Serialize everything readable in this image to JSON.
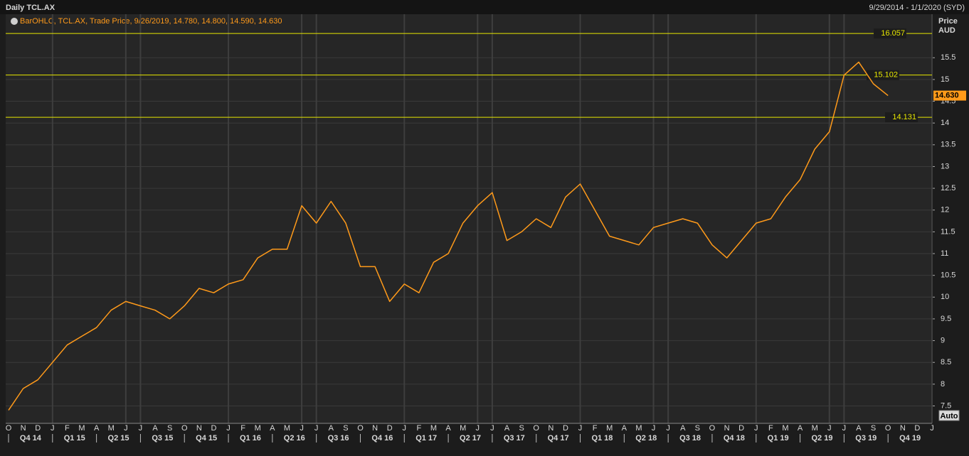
{
  "chart_data": {
    "type": "line",
    "title": "Daily TCL.AX",
    "subtitle": "9/29/2014 - 1/1/2020 (SYD)",
    "legend": "BarOHLC, TCL.AX, Trade Price, 9/26/2019, 14.780, 14.800, 14.590, 14.630",
    "y_axis_label": "Price",
    "y_unit": "AUD",
    "button": "Auto",
    "categories": [
      "O",
      "N",
      "D",
      "J",
      "F",
      "M",
      "A",
      "M",
      "J",
      "J",
      "A",
      "S",
      "O",
      "N",
      "D",
      "J",
      "F",
      "M",
      "A",
      "M",
      "J",
      "J",
      "A",
      "S",
      "O",
      "N",
      "D",
      "J",
      "F",
      "M",
      "A",
      "M",
      "J",
      "J",
      "A",
      "S",
      "O",
      "N",
      "D",
      "J",
      "F",
      "M",
      "A",
      "M",
      "J",
      "J",
      "A",
      "S",
      "O",
      "N",
      "D",
      "J",
      "F",
      "M",
      "A",
      "M",
      "J",
      "J",
      "A",
      "S",
      "O",
      "N",
      "D",
      "J"
    ],
    "quarters": [
      "Q4 14",
      "Q1 15",
      "Q2 15",
      "Q3 15",
      "Q4 15",
      "Q1 16",
      "Q2 16",
      "Q3 16",
      "Q4 16",
      "Q1 17",
      "Q2 17",
      "Q3 17",
      "Q4 17",
      "Q1 18",
      "Q2 18",
      "Q3 18",
      "Q4 18",
      "Q1 19",
      "Q2 19",
      "Q3 19",
      "Q4 19"
    ],
    "series": [
      {
        "color": "#ff9a1a",
        "values": [
          7.4,
          7.9,
          8.1,
          8.5,
          8.9,
          9.1,
          9.3,
          9.7,
          9.9,
          9.8,
          9.7,
          9.5,
          9.8,
          10.2,
          10.1,
          10.3,
          10.4,
          10.9,
          11.1,
          11.1,
          12.1,
          11.7,
          12.2,
          11.7,
          10.7,
          10.7,
          9.9,
          10.3,
          10.1,
          10.8,
          11.0,
          11.7,
          12.1,
          12.4,
          11.3,
          11.5,
          11.8,
          11.6,
          12.3,
          12.6,
          12.0,
          11.4,
          11.3,
          11.2,
          11.6,
          11.7,
          11.8,
          11.7,
          11.2,
          10.9,
          11.3,
          11.7,
          11.8,
          12.3,
          12.7,
          13.4,
          13.8,
          15.1,
          15.4,
          14.9,
          14.63,
          null,
          null,
          null
        ]
      }
    ],
    "last_price": {
      "value": 14.63,
      "label": "14.630"
    },
    "levels": [
      16.057,
      15.102,
      14.131
    ],
    "level_color": "#e6e600",
    "ylim": [
      7.1,
      16.5
    ],
    "yticks": [
      7.5,
      8,
      8.5,
      9,
      9.5,
      10,
      10.5,
      11,
      11.5,
      12,
      12.5,
      13,
      13.5,
      14,
      14.5,
      15,
      15.5
    ],
    "grid": true
  }
}
